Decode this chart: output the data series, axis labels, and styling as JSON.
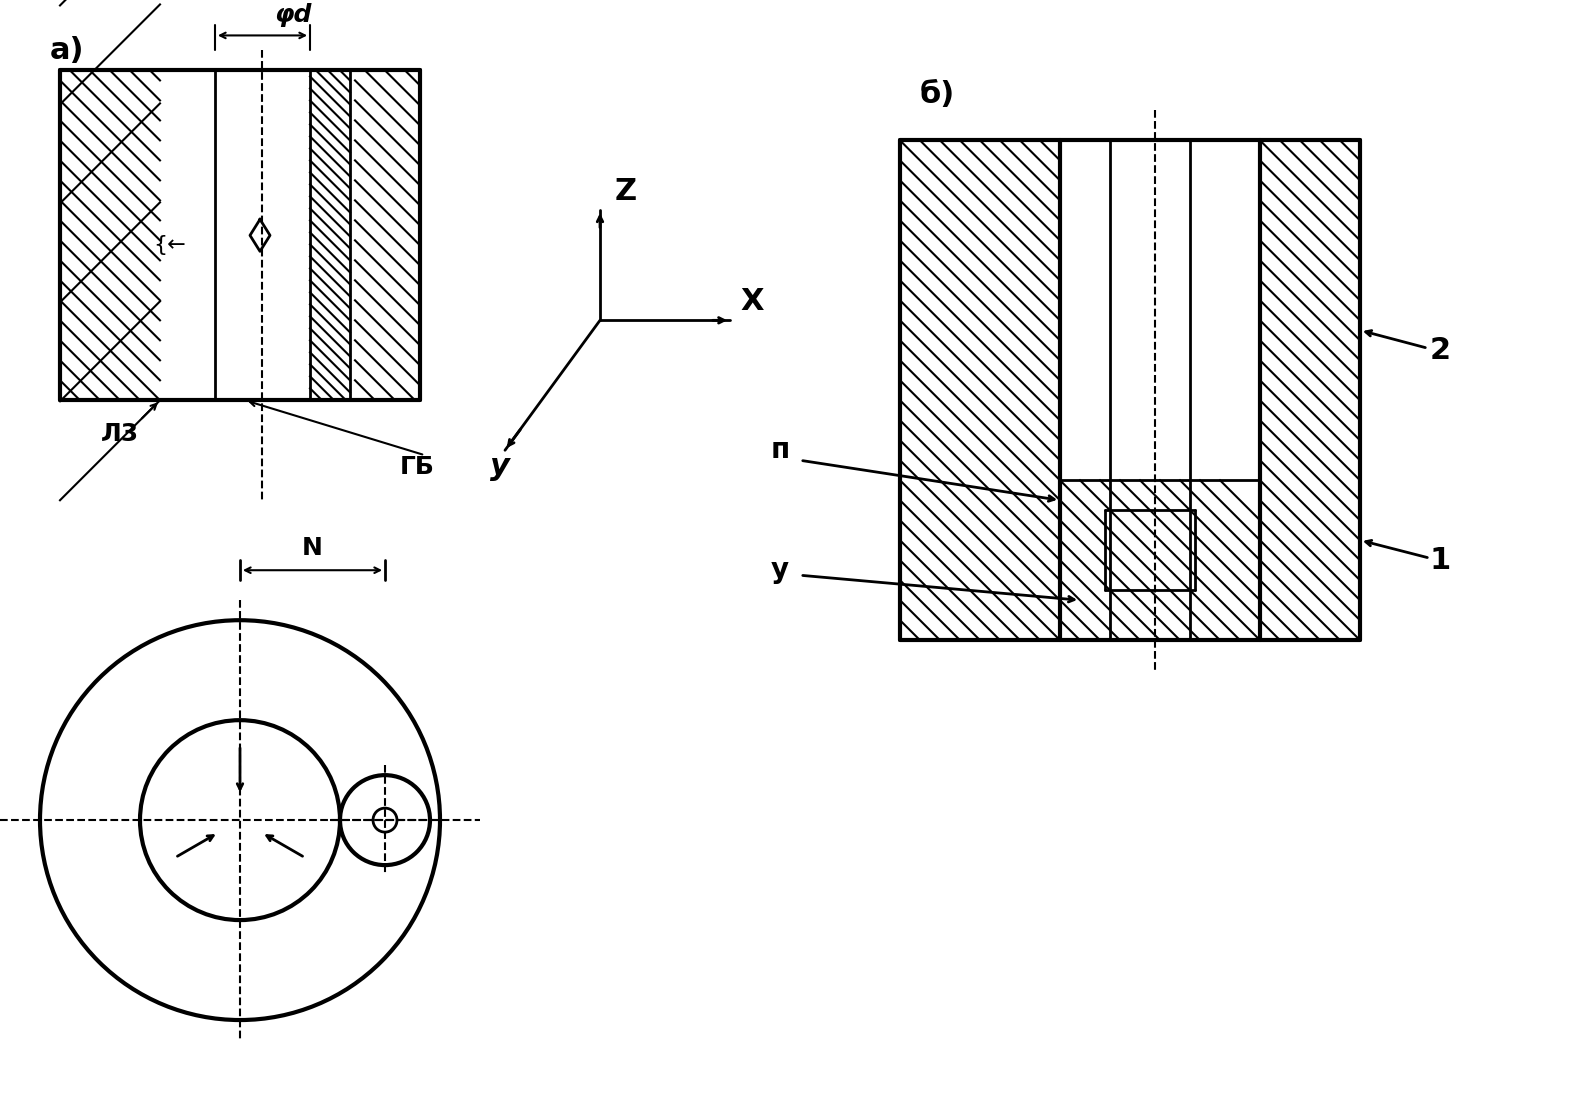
{
  "bg_color": "#ffffff",
  "line_color": "#000000",
  "hatch_color": "#000000",
  "label_a": "a)",
  "label_b": "б)",
  "label_phi_d": "φd",
  "label_lz": "Л3",
  "label_gb": "ГБ",
  "label_n": "N",
  "label_z": "Z",
  "label_x": "X",
  "label_y": "y",
  "label_p": "п",
  "label_u": "у",
  "label_1": "1",
  "label_2": "2"
}
